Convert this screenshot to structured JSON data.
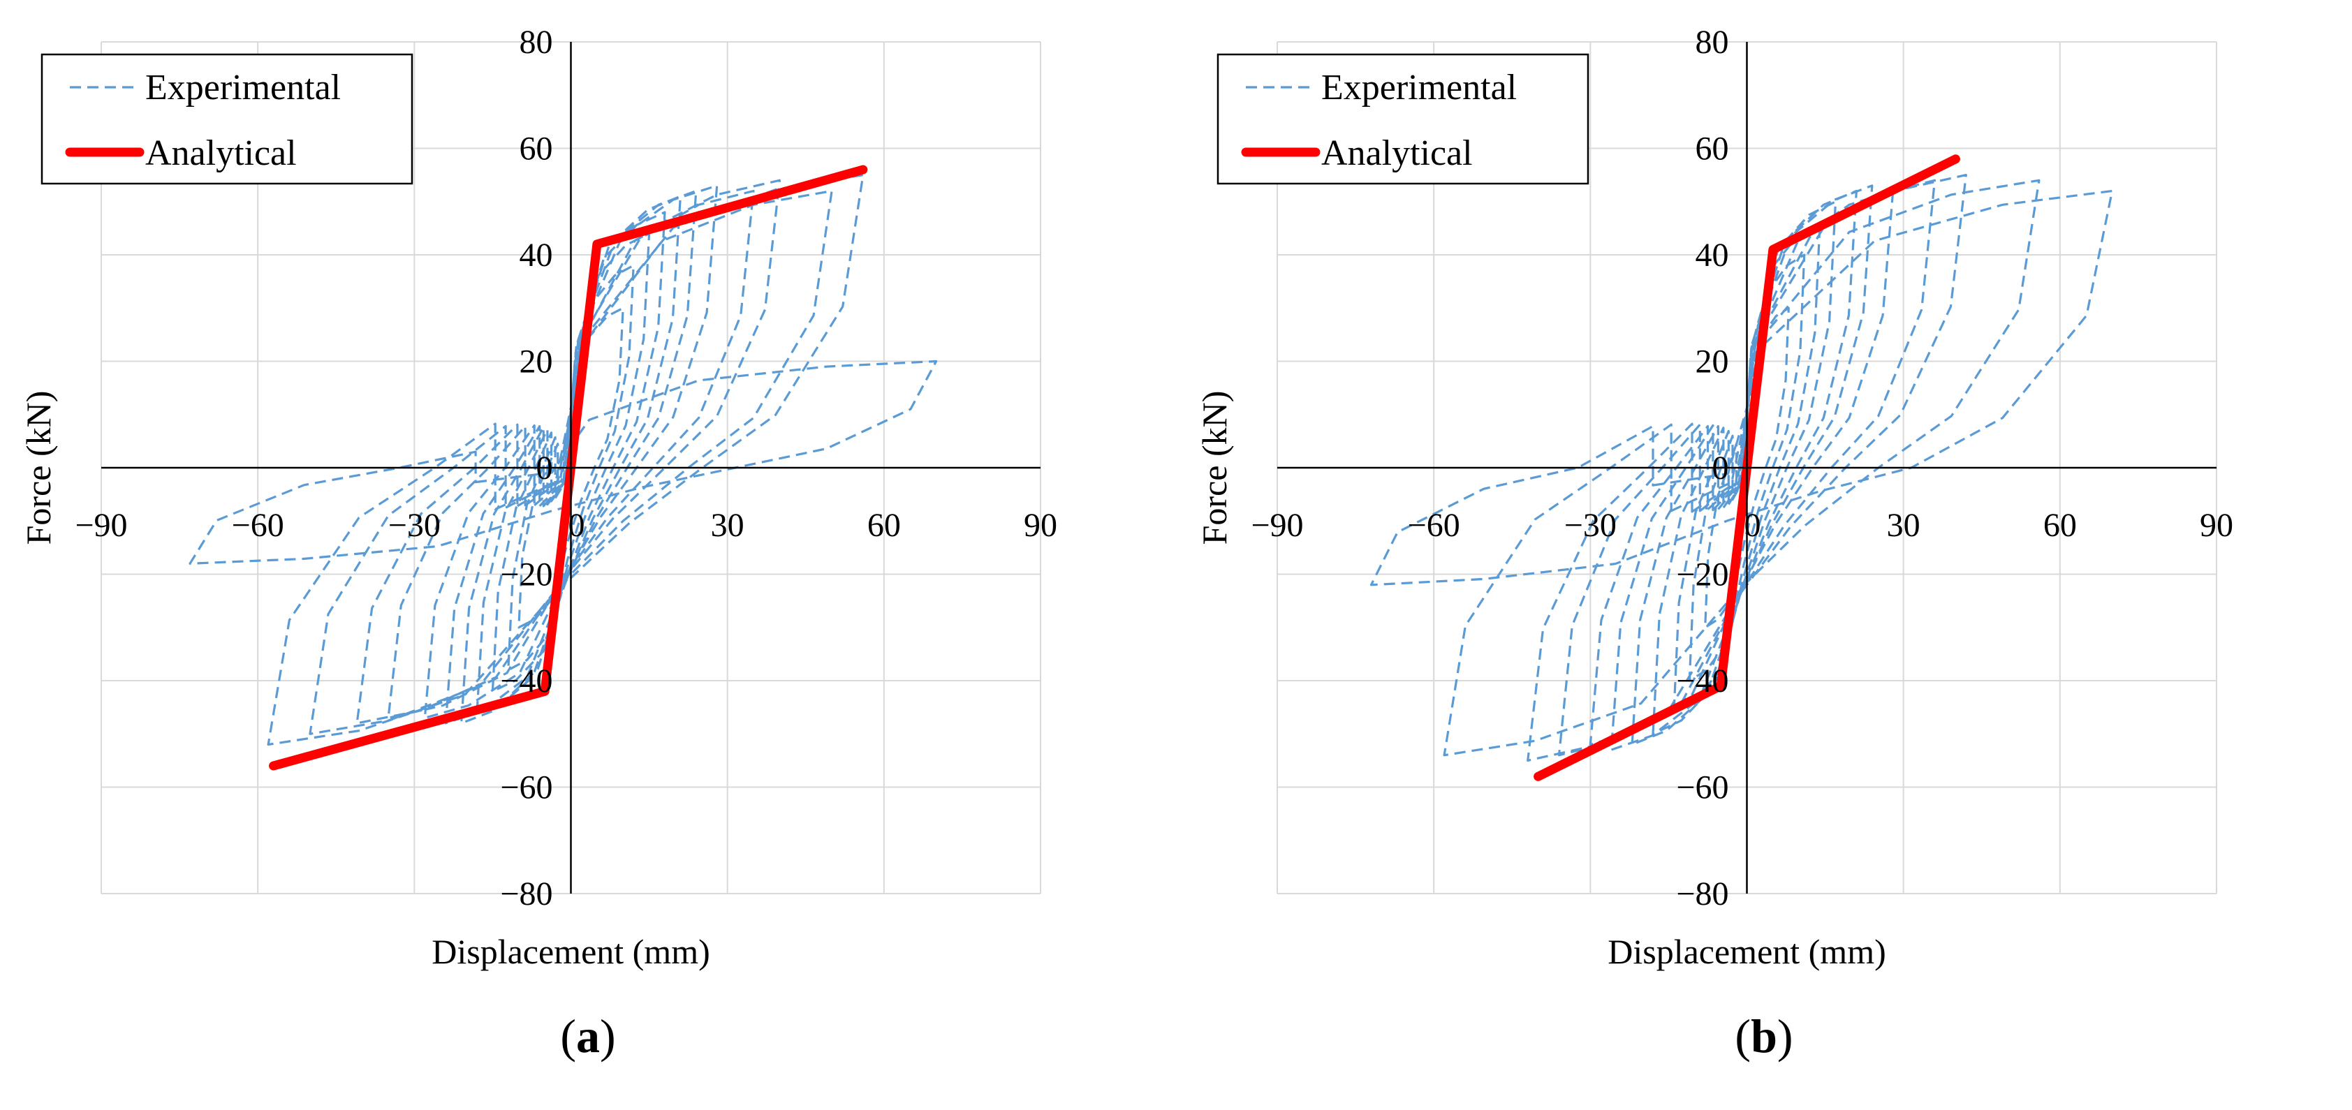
{
  "colors": {
    "experimental": "#5b9bd5",
    "analytical": "#ff0000",
    "grid": "#d9d9d9",
    "axis": "#000000"
  },
  "chart_data": [
    {
      "panel_label": "a",
      "type": "line",
      "xlabel": "Displacement (mm)",
      "ylabel": "Force (kN)",
      "xlim": [
        -90,
        90
      ],
      "ylim": [
        -80,
        80
      ],
      "xticks": [
        -90,
        -60,
        -30,
        0,
        30,
        60,
        90
      ],
      "yticks": [
        -80,
        -60,
        -40,
        -20,
        0,
        20,
        40,
        60,
        80
      ],
      "xtick_labels": [
        "−90",
        "−60",
        "−30",
        "0",
        "30",
        "60",
        "90"
      ],
      "ytick_labels": [
        "−80",
        "−60",
        "−40",
        "−20",
        "0",
        "20",
        "40",
        "60",
        "80"
      ],
      "grid": true,
      "legend": {
        "position": "top-left",
        "entries": [
          "Experimental",
          "Analytical"
        ]
      },
      "series": [
        {
          "name": "Analytical",
          "style": "solid",
          "x": [
            -57,
            -5,
            5,
            56
          ],
          "y": [
            -56,
            -42,
            42,
            56
          ]
        },
        {
          "name": "Experimental",
          "style": "dashed",
          "loops": [
            {
              "amp_pos": 10,
              "amp_neg": -10,
              "peak_pos": 30,
              "peak_neg": -30
            },
            {
              "amp_pos": 12,
              "amp_neg": -12,
              "peak_pos": 38,
              "peak_neg": -38
            },
            {
              "amp_pos": 15,
              "amp_neg": -15,
              "peak_pos": 44,
              "peak_neg": -42
            },
            {
              "amp_pos": 18,
              "amp_neg": -18,
              "peak_pos": 48,
              "peak_neg": -46
            },
            {
              "amp_pos": 21,
              "amp_neg": -21,
              "peak_pos": 51,
              "peak_neg": -48
            },
            {
              "amp_pos": 24,
              "amp_neg": -24,
              "peak_pos": 52,
              "peak_neg": -48
            },
            {
              "amp_pos": 28,
              "amp_neg": -28,
              "peak_pos": 53,
              "peak_neg": -47
            },
            {
              "amp_pos": 35,
              "amp_neg": -35,
              "peak_pos": 52,
              "peak_neg": -47
            },
            {
              "amp_pos": 40,
              "amp_neg": -41,
              "peak_pos": 54,
              "peak_neg": -48
            },
            {
              "amp_pos": 50,
              "amp_neg": -50,
              "peak_pos": 52,
              "peak_neg": -50
            },
            {
              "amp_pos": 56,
              "amp_neg": -58,
              "peak_pos": 55,
              "peak_neg": -52
            },
            {
              "amp_pos": 70,
              "amp_neg": -73,
              "peak_pos": 20,
              "peak_neg": -18
            }
          ]
        }
      ]
    },
    {
      "panel_label": "b",
      "type": "line",
      "xlabel": "Displacement (mm)",
      "ylabel": "Force (kN)",
      "xlim": [
        -90,
        90
      ],
      "ylim": [
        -80,
        80
      ],
      "xticks": [
        -90,
        -60,
        -30,
        0,
        30,
        60,
        90
      ],
      "yticks": [
        -80,
        -60,
        -40,
        -20,
        0,
        20,
        40,
        60,
        80
      ],
      "xtick_labels": [
        "−90",
        "−60",
        "−30",
        "0",
        "30",
        "60",
        "90"
      ],
      "ytick_labels": [
        "−80",
        "−60",
        "−40",
        "−20",
        "0",
        "20",
        "40",
        "60",
        "80"
      ],
      "grid": true,
      "legend": {
        "position": "top-left",
        "entries": [
          "Experimental",
          "Analytical"
        ]
      },
      "series": [
        {
          "name": "Analytical",
          "style": "solid",
          "x": [
            -40,
            -5,
            5,
            40
          ],
          "y": [
            -58,
            -41,
            41,
            58
          ]
        },
        {
          "name": "Experimental",
          "style": "dashed",
          "loops": [
            {
              "amp_pos": 8,
              "amp_neg": -8,
              "peak_pos": 30,
              "peak_neg": -30
            },
            {
              "amp_pos": 11,
              "amp_neg": -11,
              "peak_pos": 40,
              "peak_neg": -40
            },
            {
              "amp_pos": 14,
              "amp_neg": -14,
              "peak_pos": 46,
              "peak_neg": -46
            },
            {
              "amp_pos": 17,
              "amp_neg": -18,
              "peak_pos": 50,
              "peak_neg": -50
            },
            {
              "amp_pos": 21,
              "amp_neg": -22,
              "peak_pos": 52,
              "peak_neg": -52
            },
            {
              "amp_pos": 24,
              "amp_neg": -26,
              "peak_pos": 53,
              "peak_neg": -53
            },
            {
              "amp_pos": 28,
              "amp_neg": -30,
              "peak_pos": 52,
              "peak_neg": -52
            },
            {
              "amp_pos": 36,
              "amp_neg": -36,
              "peak_pos": 54,
              "peak_neg": -54
            },
            {
              "amp_pos": 42,
              "amp_neg": -42,
              "peak_pos": 55,
              "peak_neg": -55
            },
            {
              "amp_pos": 56,
              "amp_neg": -58,
              "peak_pos": 54,
              "peak_neg": -54
            },
            {
              "amp_pos": 70,
              "amp_neg": -72,
              "peak_pos": 52,
              "peak_neg": -22
            }
          ]
        }
      ]
    }
  ]
}
